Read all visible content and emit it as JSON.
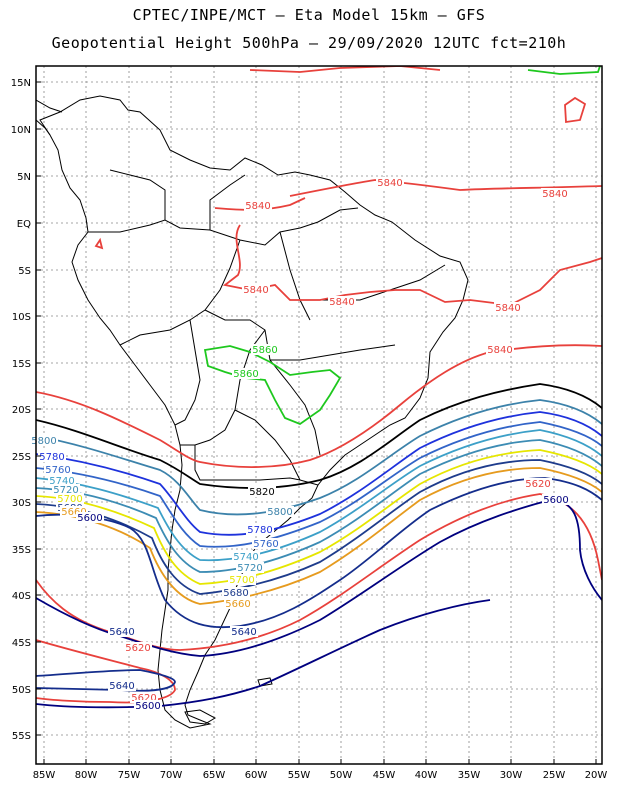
{
  "header": {
    "line1": "CPTEC/INPE/MCT –  Eta Model 15km – GFS",
    "line2": "Geopotential Height 500hPa – 29/09/2020 12UTC fct=210h"
  },
  "axes": {
    "lat_labels": [
      "15N",
      "10N",
      "5N",
      "EQ",
      "5S",
      "10S",
      "15S",
      "20S",
      "25S",
      "30S",
      "35S",
      "40S",
      "45S",
      "50S",
      "55S"
    ],
    "lon_labels": [
      "85W",
      "80W",
      "75W",
      "70W",
      "65W",
      "60W",
      "55W",
      "50W",
      "45W",
      "40W",
      "35W",
      "30W",
      "25W",
      "20W"
    ]
  },
  "colors": {
    "5600": "#00007f",
    "5620": "#e8413c",
    "5640": "#142d8c",
    "5660": "#e69b1e",
    "5680": "#1e3c8c",
    "5700": "#e6e600",
    "5720": "#3c8cb4",
    "5740": "#3ca0c8",
    "5760": "#3264c8",
    "5780": "#1e32dc",
    "5800": "#3c82aa",
    "5820": "#000000",
    "5840": "#e8413c",
    "5860": "#1ec81e",
    "land": "#000000",
    "grid": "#888888"
  },
  "contour_labels": [
    {
      "id": "l5840a",
      "text": "5840",
      "color": "5840"
    },
    {
      "id": "l5840b",
      "text": "5840",
      "color": "5840"
    },
    {
      "id": "l5840c",
      "text": "5840",
      "color": "5840"
    },
    {
      "id": "l5840d",
      "text": "5840",
      "color": "5840"
    },
    {
      "id": "l5840e",
      "text": "5840",
      "color": "5840"
    },
    {
      "id": "l5840f",
      "text": "5840",
      "color": "5840"
    },
    {
      "id": "l5840g",
      "text": "5840",
      "color": "5840"
    },
    {
      "id": "l5860a",
      "text": "5860",
      "color": "5860"
    },
    {
      "id": "l5860b",
      "text": "5860",
      "color": "5860"
    },
    {
      "id": "l5820",
      "text": "5820",
      "color": "5820"
    },
    {
      "id": "l5800a",
      "text": "5800",
      "color": "5800"
    },
    {
      "id": "l5800b",
      "text": "5800",
      "color": "5800"
    },
    {
      "id": "l5780a",
      "text": "5780",
      "color": "5780"
    },
    {
      "id": "l5780b",
      "text": "5780",
      "color": "5780"
    },
    {
      "id": "l5760a",
      "text": "5760",
      "color": "5760"
    },
    {
      "id": "l5760b",
      "text": "5760",
      "color": "5760"
    },
    {
      "id": "l5740a",
      "text": "5740",
      "color": "5740"
    },
    {
      "id": "l5740b",
      "text": "5740",
      "color": "5740"
    },
    {
      "id": "l5720a",
      "text": "5720",
      "color": "5720"
    },
    {
      "id": "l5720b",
      "text": "5720",
      "color": "5720"
    },
    {
      "id": "l5700a",
      "text": "5700",
      "color": "5700"
    },
    {
      "id": "l5700b",
      "text": "5700",
      "color": "5700"
    },
    {
      "id": "l5680a",
      "text": "5680",
      "color": "5680"
    },
    {
      "id": "l5680b",
      "text": "5680",
      "color": "5680"
    },
    {
      "id": "l5660a",
      "text": "5660",
      "color": "5660"
    },
    {
      "id": "l5660b",
      "text": "5660",
      "color": "5660"
    },
    {
      "id": "l5640a",
      "text": "5640",
      "color": "5640"
    },
    {
      "id": "l5640b",
      "text": "5640",
      "color": "5640"
    },
    {
      "id": "l5640c",
      "text": "5640",
      "color": "5640"
    },
    {
      "id": "l5620a",
      "text": "5620",
      "color": "5620"
    },
    {
      "id": "l5620b",
      "text": "5620",
      "color": "5620"
    },
    {
      "id": "l5620c",
      "text": "5620",
      "color": "5620"
    },
    {
      "id": "l5600a",
      "text": "5600",
      "color": "5600"
    },
    {
      "id": "l5600b",
      "text": "5600",
      "color": "5600"
    },
    {
      "id": "l5600c",
      "text": "5600",
      "color": "5600"
    }
  ]
}
